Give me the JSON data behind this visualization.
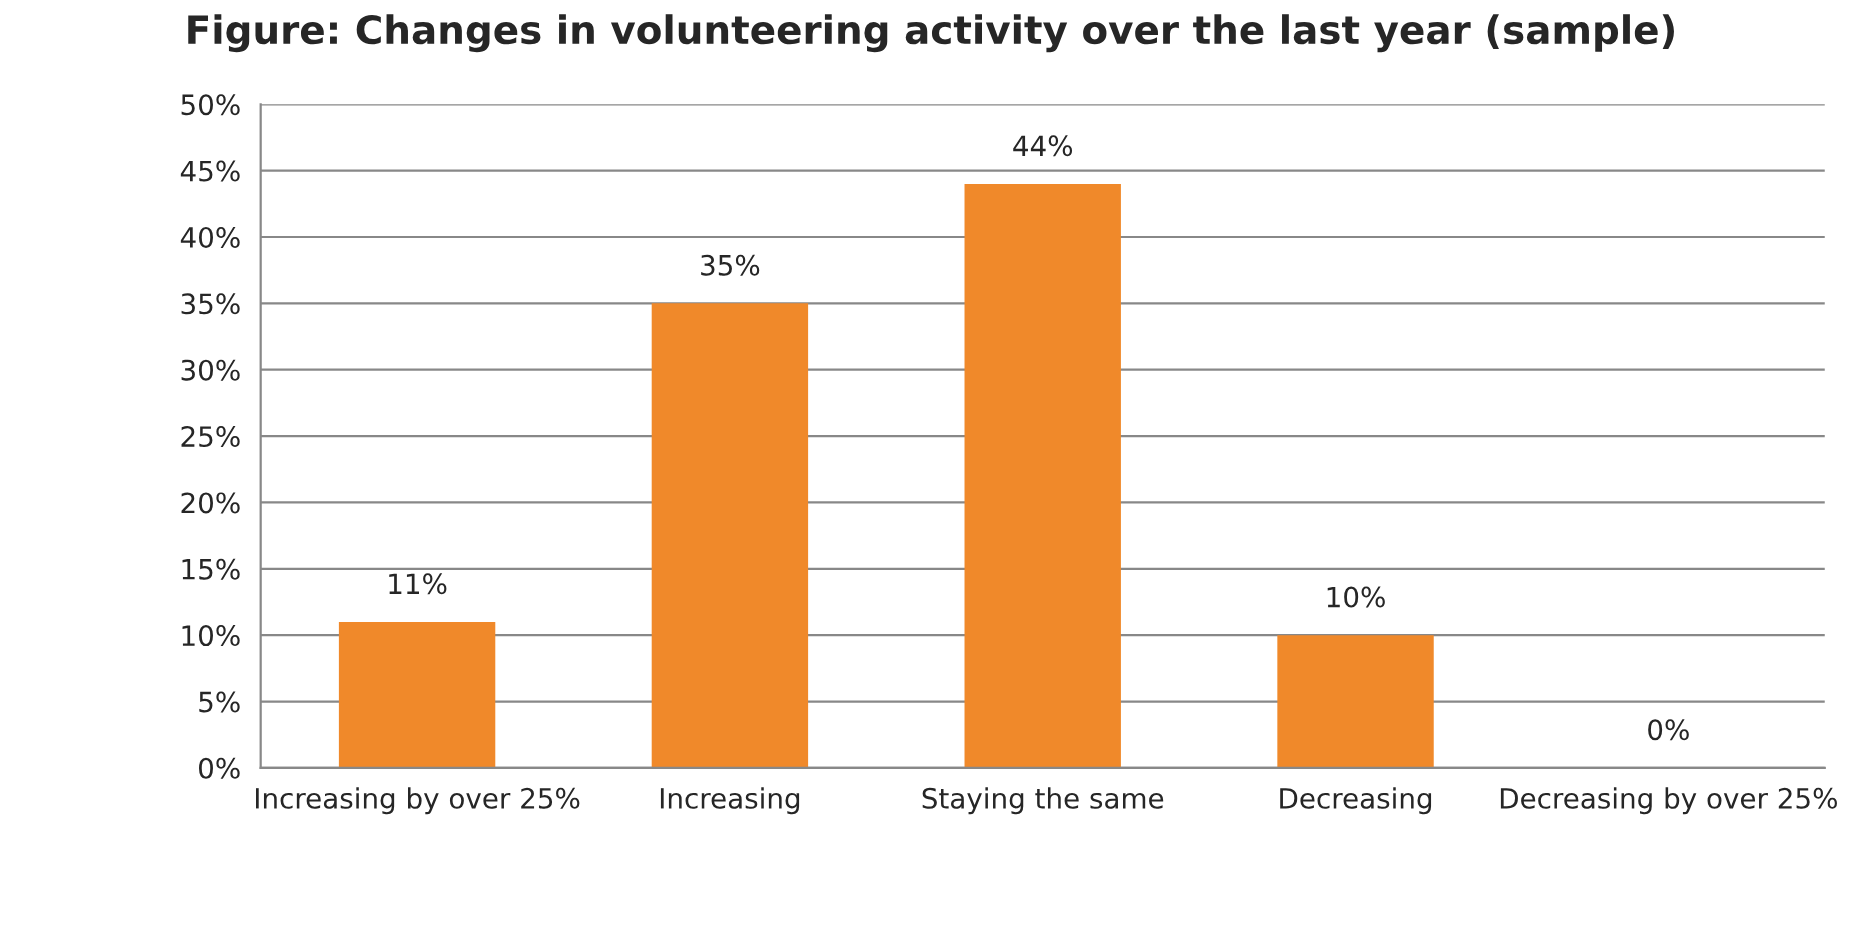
{
  "chart_data": {
    "type": "bar",
    "title": "Figure: Changes in volunteering activity over the last year (sample)",
    "categories": [
      "Increasing by over 25%",
      "Increasing",
      "Staying the same",
      "Decreasing",
      "Decreasing by over 25%"
    ],
    "values": [
      11,
      35,
      44,
      10,
      0
    ],
    "value_labels": [
      "11%",
      "35%",
      "44%",
      "10%",
      "0%"
    ],
    "color": "#f0892a",
    "ylim": [
      0,
      50
    ],
    "yticks": [
      {
        "value": 0,
        "label": "0%"
      },
      {
        "value": 5,
        "label": "5%"
      },
      {
        "value": 10,
        "label": "10%"
      },
      {
        "value": 15,
        "label": "15%"
      },
      {
        "value": 20,
        "label": "20%"
      },
      {
        "value": 25,
        "label": "25%"
      },
      {
        "value": 30,
        "label": "30%"
      },
      {
        "value": 35,
        "label": "35%"
      },
      {
        "value": 40,
        "label": "40%"
      },
      {
        "value": 45,
        "label": "45%"
      },
      {
        "value": 50,
        "label": "50%"
      }
    ],
    "grid": "y",
    "legend": false
  }
}
